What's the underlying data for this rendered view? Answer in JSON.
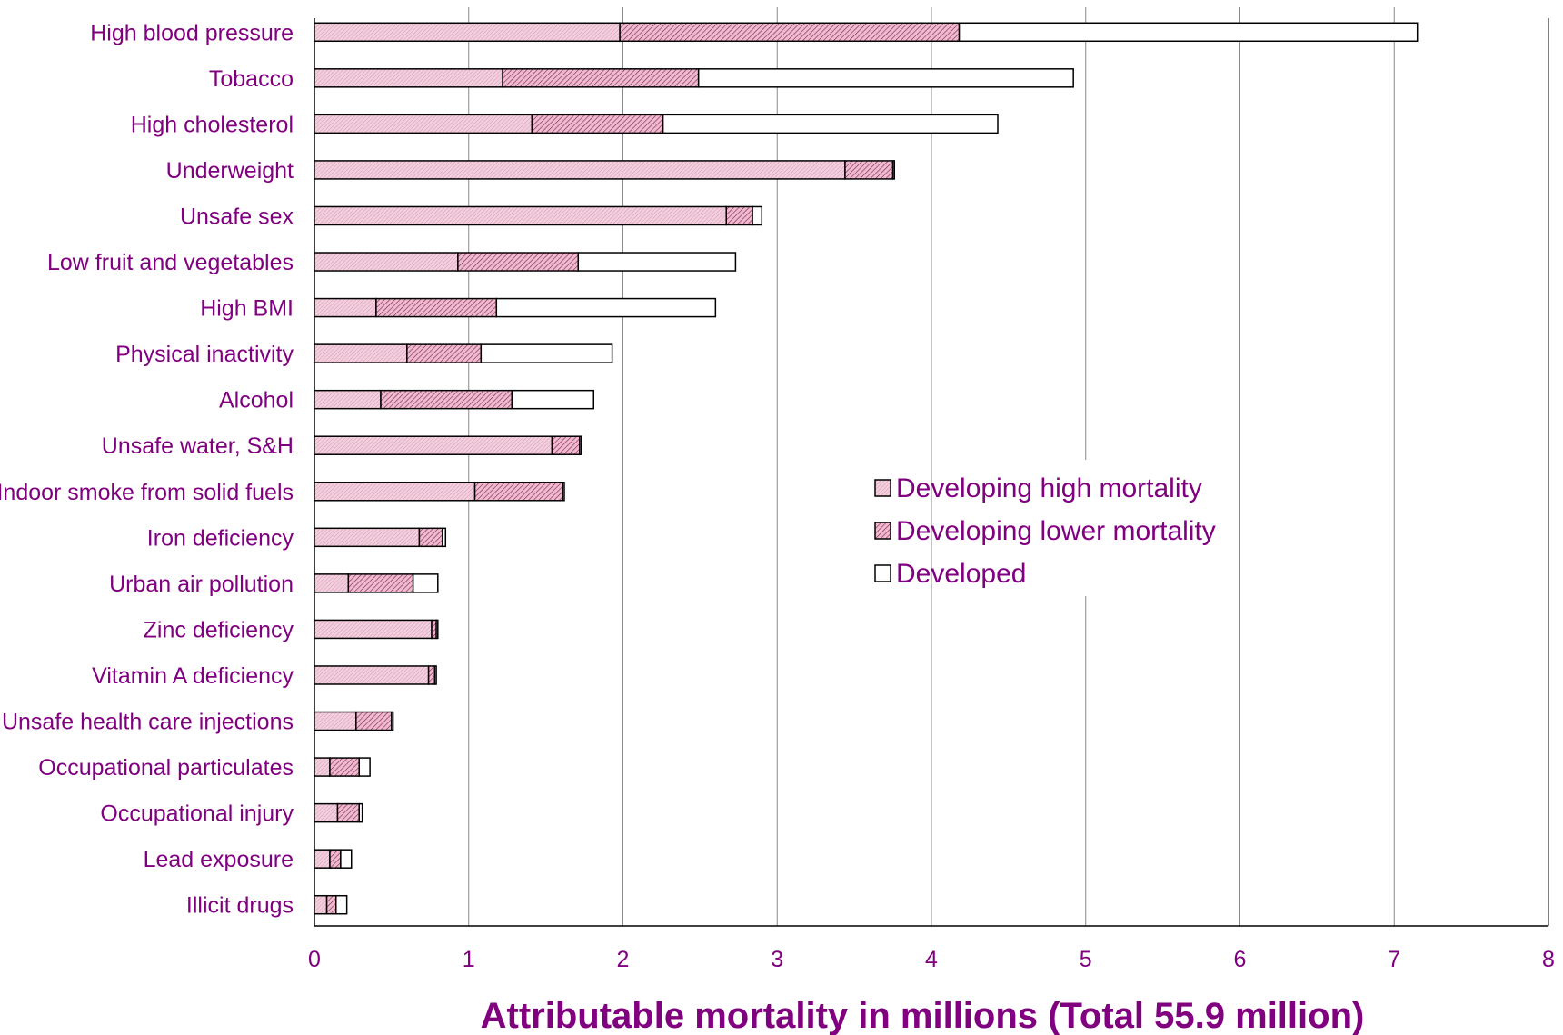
{
  "chart_data": {
    "type": "bar",
    "orientation": "horizontal",
    "stacked": true,
    "title": "",
    "xlabel": "Attributable mortality in millions (Total 55.9 million)",
    "ylabel": "",
    "xlim": [
      0,
      8
    ],
    "xticks": [
      "0",
      "1",
      "2",
      "3",
      "4",
      "5",
      "6",
      "7",
      "8"
    ],
    "grid": "vertical",
    "legend_position": "center-right",
    "categories": [
      "High blood pressure",
      "Tobacco",
      "High cholesterol",
      "Underweight",
      "Unsafe sex",
      "Low fruit and vegetables",
      "High BMI",
      "Physical inactivity",
      "Alcohol",
      "Unsafe water, S&H",
      "Indoor smoke from solid fuels",
      "Iron deficiency",
      "Urban air pollution",
      "Zinc deficiency",
      "Vitamin A deficiency",
      "Unsafe health care injections",
      "Occupational particulates",
      "Occupational injury",
      "Lead exposure",
      "Illicit drugs"
    ],
    "series": [
      {
        "name": "Developing high mortality",
        "color": "#f2c7d9",
        "pattern": "fine-hatch",
        "values": [
          1.98,
          1.22,
          1.41,
          3.44,
          2.67,
          0.93,
          0.4,
          0.6,
          0.43,
          1.54,
          1.04,
          0.68,
          0.22,
          0.76,
          0.74,
          0.27,
          0.1,
          0.15,
          0.1,
          0.08
        ]
      },
      {
        "name": "Developing lower mortality",
        "color": "#e8a6c3",
        "pattern": "dense-hatch",
        "values": [
          2.2,
          1.27,
          0.85,
          0.31,
          0.17,
          0.78,
          0.78,
          0.48,
          0.85,
          0.18,
          0.57,
          0.15,
          0.42,
          0.03,
          0.04,
          0.23,
          0.19,
          0.14,
          0.07,
          0.06
        ]
      },
      {
        "name": "Developed",
        "color": "#ffffff",
        "pattern": "none",
        "values": [
          2.97,
          2.43,
          2.17,
          0.01,
          0.06,
          1.02,
          1.42,
          0.85,
          0.53,
          0.01,
          0.01,
          0.02,
          0.16,
          0.01,
          0.01,
          0.01,
          0.07,
          0.02,
          0.07,
          0.07
        ]
      }
    ]
  }
}
